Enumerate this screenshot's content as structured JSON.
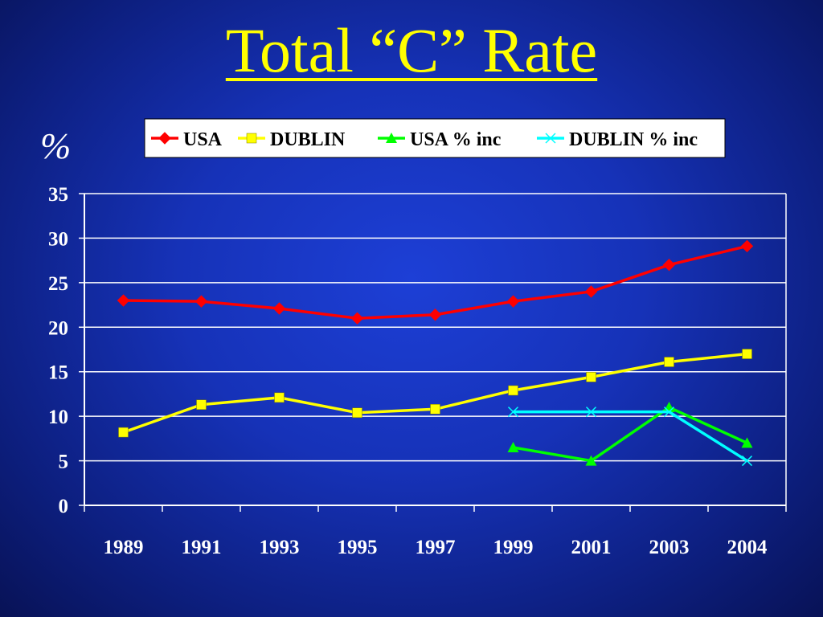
{
  "slide": {
    "title": "Total “C” Rate",
    "y_unit": "%"
  },
  "chart_data": {
    "type": "line",
    "title": "",
    "xlabel": "",
    "ylabel": "%",
    "categories": [
      "1989",
      "1991",
      "1993",
      "1995",
      "1997",
      "1999",
      "2001",
      "2003",
      "2004"
    ],
    "ylim": [
      0,
      35
    ],
    "yticks": [
      0,
      5,
      10,
      15,
      20,
      25,
      30,
      35
    ],
    "grid": true,
    "legend_position": "top",
    "series": [
      {
        "name": "USA",
        "color": "#ff0000",
        "marker": "diamond",
        "values": [
          23,
          22.9,
          22.1,
          21.0,
          21.4,
          22.9,
          24.0,
          27.0,
          29.1
        ]
      },
      {
        "name": "DUBLIN",
        "color": "#ffff00",
        "marker": "square",
        "values": [
          8.2,
          11.3,
          12.1,
          10.4,
          10.8,
          12.9,
          14.4,
          16.1,
          17.0
        ]
      },
      {
        "name": "USA % inc",
        "color": "#00ff00",
        "marker": "triangle",
        "values": [
          null,
          null,
          null,
          null,
          null,
          6.5,
          5.0,
          11.0,
          7.0
        ]
      },
      {
        "name": "DUBLIN % inc",
        "color": "#00ffff",
        "marker": "x",
        "values": [
          null,
          null,
          null,
          null,
          null,
          10.5,
          10.5,
          10.5,
          5.0
        ]
      }
    ]
  }
}
